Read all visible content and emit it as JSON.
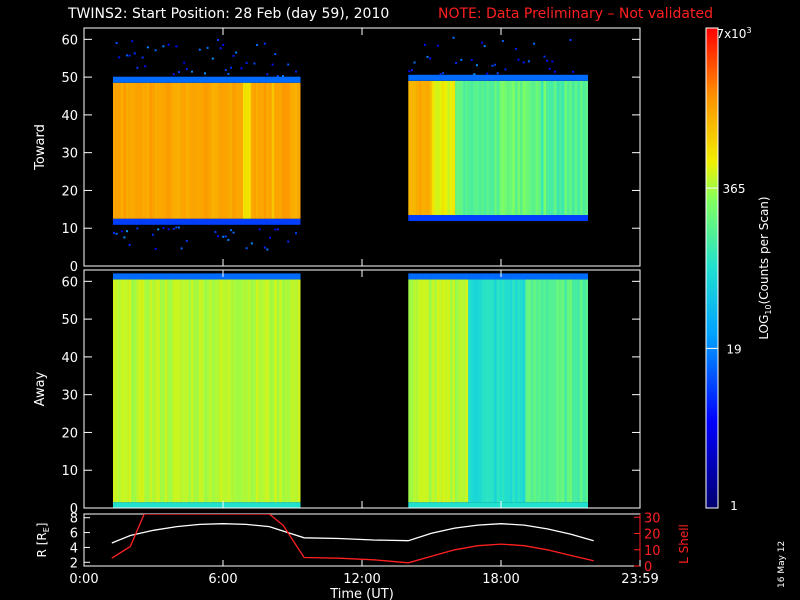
{
  "header": {
    "title": "TWINS2: Start Position: 28 Feb (day  59), 2010",
    "note": "NOTE: Data Preliminary – Not validated"
  },
  "footer": {
    "date_stamp": "16 May 12"
  },
  "colors": {
    "background": "#000000",
    "axis": "#ffffff",
    "accent": "#ff2020"
  },
  "chart_data": [
    {
      "type": "heatmap",
      "name": "Toward",
      "ylabel": "Toward",
      "xlabel": "",
      "ylim": [
        0,
        63
      ],
      "yticks": [
        0,
        10,
        20,
        30,
        40,
        50,
        60
      ],
      "xlim": [
        0,
        24
      ],
      "segments": [
        {
          "start_hr": 1.25,
          "end_hr": 9.3,
          "y_low": 12.5,
          "y_high": 48.5,
          "level": "high (~1000-3000 counts)"
        },
        {
          "start_hr": 14.0,
          "end_hr": 21.7,
          "y_low": 13.5,
          "y_high": 49.0,
          "level": "high early, decreasing to ~50-200 after 16:00"
        }
      ]
    },
    {
      "type": "heatmap",
      "name": "Away",
      "ylabel": "Away",
      "xlabel": "Time (UT)",
      "ylim": [
        0,
        63
      ],
      "yticks": [
        0,
        10,
        20,
        30,
        40,
        50,
        60
      ],
      "xlim": [
        0,
        24
      ],
      "xticks": [
        "0:00",
        "6:00",
        "12:00",
        "18:00",
        "23:59"
      ],
      "segments": [
        {
          "start_hr": 1.25,
          "end_hr": 9.3,
          "y_low": 1.5,
          "y_high": 60.5,
          "level": "moderate (~200-400 counts)"
        },
        {
          "start_hr": 14.0,
          "end_hr": 21.7,
          "y_low": 1.5,
          "y_high": 60.5,
          "level": "moderate, dip near 17:00-18:30"
        }
      ]
    },
    {
      "type": "line",
      "name": "orbit",
      "xlim": [
        0,
        24
      ],
      "left_axis": {
        "label": "R [R",
        "label_sub": "E",
        "label_tail": "]",
        "ylim": [
          1.5,
          8.5
        ],
        "yticks": [
          2,
          4,
          6,
          8
        ]
      },
      "right_axis": {
        "label": "L Shell",
        "ylim": [
          0,
          32
        ],
        "yticks": [
          0,
          10,
          20,
          30
        ]
      },
      "series": [
        {
          "name": "R [RE]",
          "color": "#ffffff",
          "x": [
            1.2,
            2.0,
            3.0,
            4.0,
            5.0,
            6.0,
            7.0,
            8.0,
            9.5,
            11.0,
            12.5,
            14.0,
            15.0,
            16.0,
            17.0,
            18.0,
            19.0,
            20.0,
            21.0,
            22.0
          ],
          "y": [
            4.6,
            5.6,
            6.3,
            6.8,
            7.1,
            7.2,
            7.1,
            6.8,
            5.3,
            5.2,
            5.0,
            4.9,
            5.9,
            6.6,
            7.0,
            7.2,
            7.0,
            6.5,
            5.8,
            4.9
          ]
        },
        {
          "name": "L Shell",
          "color": "#ff2020",
          "x": [
            1.2,
            2.0,
            2.6,
            8.0,
            8.6,
            9.5,
            11.0,
            12.5,
            14.0,
            15.0,
            16.0,
            17.0,
            18.0,
            19.0,
            20.0,
            21.0,
            22.0
          ],
          "y": [
            4.8,
            12.0,
            32.0,
            32.0,
            25.0,
            5.2,
            4.8,
            3.8,
            2.0,
            6.0,
            10.0,
            12.5,
            13.5,
            12.5,
            10.0,
            6.5,
            3.2
          ]
        }
      ]
    }
  ],
  "colorbar": {
    "label": "LOG",
    "label_sub": "10",
    "label_tail": "(Counts per Scan)",
    "ticks": [
      {
        "text": "1",
        "value": 1
      },
      {
        "text": "19",
        "value": 19
      },
      {
        "text": "365",
        "value": 365
      },
      {
        "text": "7x10",
        "sup": "3",
        "value": 7000
      }
    ]
  }
}
